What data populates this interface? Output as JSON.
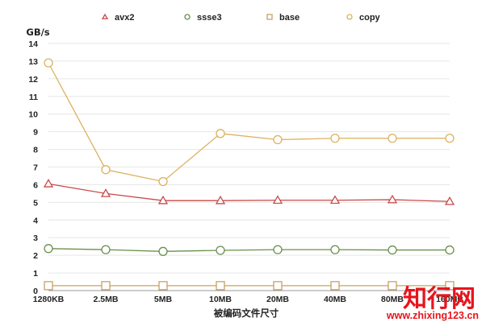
{
  "chart_data": {
    "type": "line",
    "title": "",
    "ylabel": "GB/s",
    "xlabel": "被编码文件尺寸",
    "categories": [
      "1280KB",
      "2.5MB",
      "5MB",
      "10MB",
      "20MB",
      "40MB",
      "80MB",
      "160MB"
    ],
    "ylim": [
      0,
      14
    ],
    "yticks": [
      0,
      1,
      2,
      3,
      4,
      5,
      6,
      7,
      8,
      9,
      10,
      11,
      12,
      13,
      14
    ],
    "grid": "horizontal",
    "legend_position": "top",
    "series": [
      {
        "name": "avx2",
        "marker": "triangle",
        "color": "#c84a4a",
        "values": [
          6.05,
          5.5,
          5.1,
          5.1,
          5.12,
          5.12,
          5.15,
          5.05
        ]
      },
      {
        "name": "ssse3",
        "marker": "circle",
        "color": "#6a8f4a",
        "values": [
          2.38,
          2.32,
          2.22,
          2.28,
          2.32,
          2.32,
          2.3,
          2.3
        ]
      },
      {
        "name": "base",
        "marker": "square",
        "color": "#c8a062",
        "values": [
          0.28,
          0.28,
          0.28,
          0.28,
          0.28,
          0.28,
          0.28,
          0.28
        ]
      },
      {
        "name": "copy",
        "marker": "circle",
        "color": "#dcb15e",
        "values": [
          12.9,
          6.85,
          6.18,
          8.9,
          8.55,
          8.63,
          8.63,
          8.63
        ]
      }
    ]
  },
  "watermark": {
    "brand": "知行网",
    "url": "www.zhixing123.cn"
  }
}
